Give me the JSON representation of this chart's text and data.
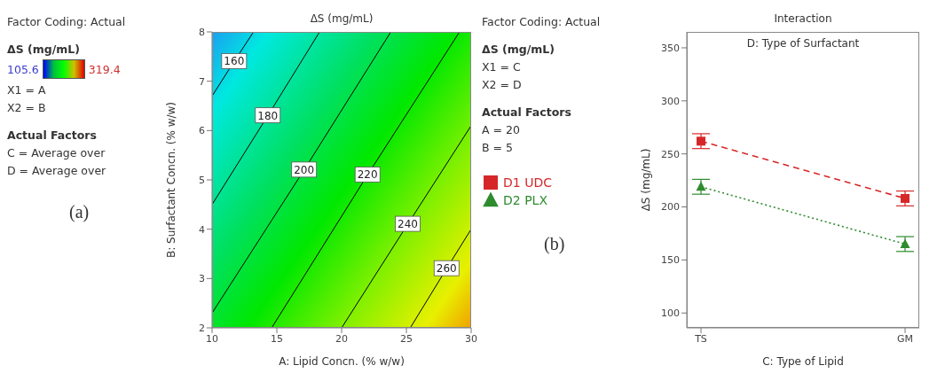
{
  "chart_data": [
    {
      "type": "line",
      "title": "ΔS (mg/mL)",
      "xlabel": "A: Lipid Concn. (% w/w)",
      "ylabel": "B: Surfactant Concn. (% w/w)",
      "clabel": "ΔS (mg/mL)",
      "xlim": [
        10,
        30
      ],
      "xticks": [
        10,
        15,
        20,
        25,
        30
      ],
      "ylim": [
        2,
        8
      ],
      "yticks": [
        2,
        3,
        4,
        5,
        6,
        7,
        8
      ],
      "series": [
        {
          "name": "160",
          "color": "#000000",
          "x": [
            10,
            11.7,
            13.2
          ],
          "values": [
            6.7,
            7.4,
            8
          ]
        },
        {
          "name": "180",
          "color": "#000000",
          "x": [
            10,
            14.3,
            18.3
          ],
          "values": [
            4.5,
            6.3,
            8
          ]
        },
        {
          "name": "200",
          "color": "#000000",
          "x": [
            10,
            17.1,
            23.8
          ],
          "values": [
            2.3,
            5.2,
            8
          ]
        },
        {
          "name": "220",
          "color": "#000000",
          "x": [
            14.6,
            22,
            29.1
          ],
          "values": [
            2,
            5.1,
            8
          ]
        },
        {
          "name": "240",
          "color": "#000000",
          "x": [
            20,
            25.1,
            30
          ],
          "values": [
            2,
            4.1,
            6.1
          ]
        },
        {
          "name": "260",
          "color": "#000000",
          "x": [
            25.3,
            28.1,
            30
          ],
          "values": [
            2,
            3.2,
            4
          ]
        }
      ],
      "annotations": [
        "Factor Coding: Actual",
        "105.6",
        "319.4",
        "X1 = A",
        "X2 = B",
        "Actual Factors",
        "C = Average over",
        "D = Average over",
        "(a)"
      ]
    },
    {
      "type": "line",
      "title": "Interaction",
      "legend_title": "D: Type of Surfactant",
      "xlabel": "C: Type of Lipid",
      "ylabel": "ΔS (mg/mL)",
      "categories": [
        "TS",
        "GM"
      ],
      "ylim": [
        86,
        365
      ],
      "yticks": [
        100,
        150,
        200,
        250,
        300,
        350
      ],
      "legend": "left",
      "series": [
        {
          "name": "D1 UDC",
          "color": "#d62728",
          "values": [
            262,
            208
          ],
          "errors": [
            7,
            7
          ],
          "marker": "square",
          "line_style": "dashed"
        },
        {
          "name": "D2 PLX",
          "color": "#2e8b2e",
          "values": [
            219,
            165
          ],
          "errors": [
            7,
            7
          ],
          "marker": "triangle",
          "line_style": "dotted"
        }
      ],
      "annotations": [
        "Factor Coding: Actual",
        "ΔS (mg/mL)",
        "X1 = C",
        "X2 = D",
        "Actual Factors",
        "A = 20",
        "B = 5",
        "(b)"
      ]
    }
  ]
}
